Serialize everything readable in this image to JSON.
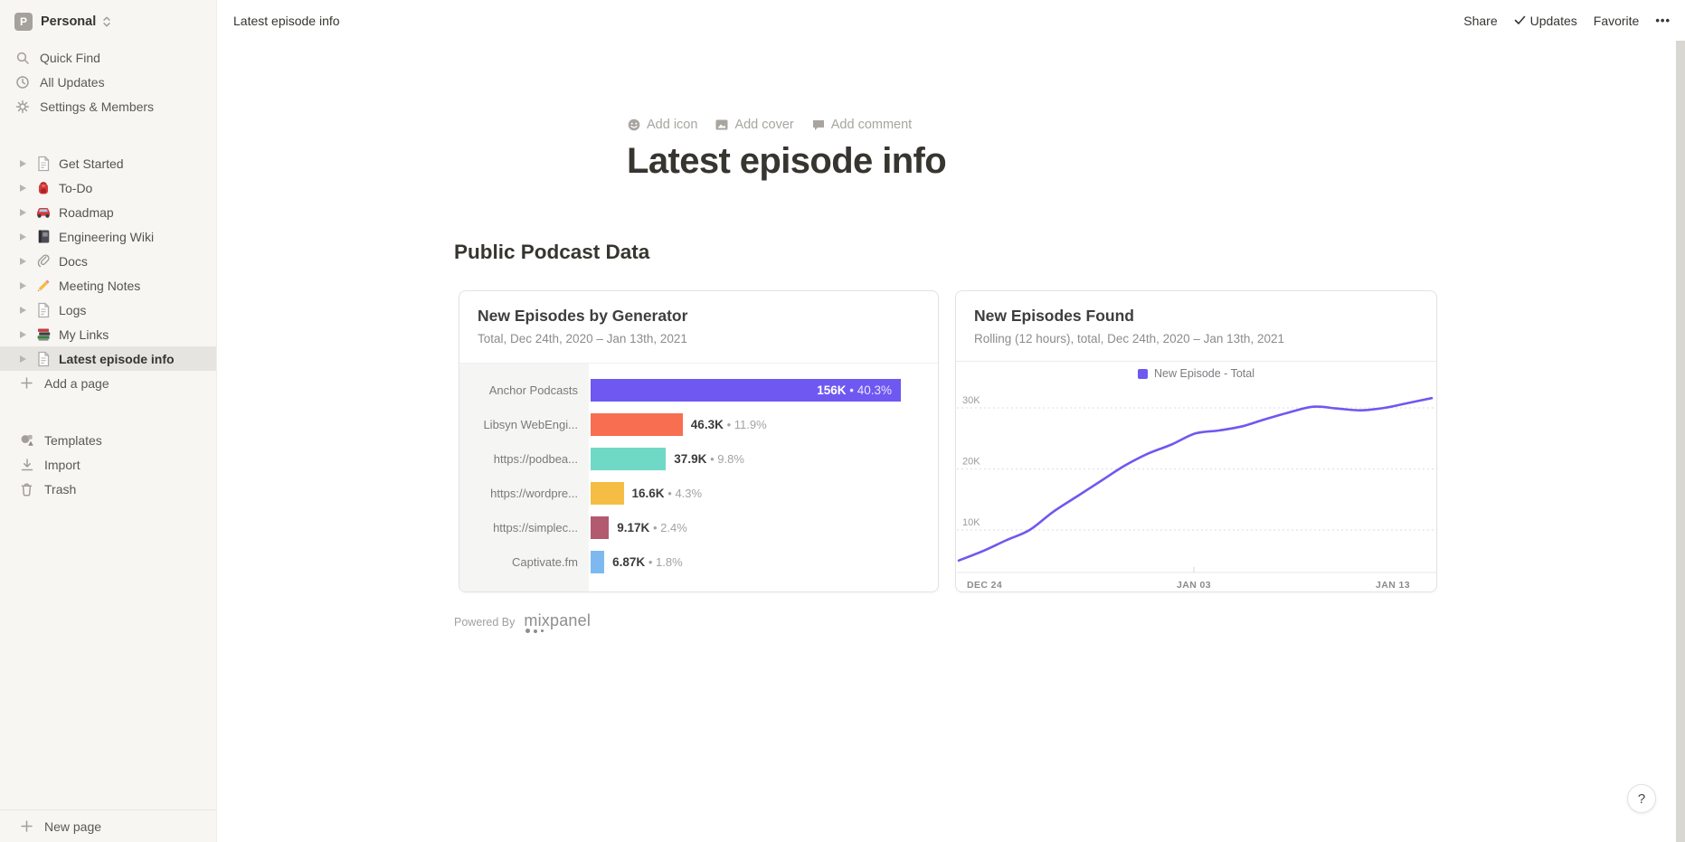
{
  "workspace": {
    "name": "Personal",
    "avatar_letter": "P"
  },
  "sidebar": {
    "top_items": [
      {
        "label": "Quick Find",
        "icon": "search"
      },
      {
        "label": "All Updates",
        "icon": "clock"
      },
      {
        "label": "Settings & Members",
        "icon": "gear"
      }
    ],
    "pages": [
      {
        "label": "Get Started",
        "icon": "page",
        "selected": false
      },
      {
        "label": "To-Do",
        "icon": "backpack",
        "selected": false
      },
      {
        "label": "Roadmap",
        "icon": "car",
        "selected": false
      },
      {
        "label": "Engineering Wiki",
        "icon": "notebook",
        "selected": false
      },
      {
        "label": "Docs",
        "icon": "paperclip",
        "selected": false
      },
      {
        "label": "Meeting Notes",
        "icon": "pencil",
        "selected": false
      },
      {
        "label": "Logs",
        "icon": "page",
        "selected": false
      },
      {
        "label": "My Links",
        "icon": "books",
        "selected": false
      },
      {
        "label": "Latest episode info",
        "icon": "page",
        "selected": true
      }
    ],
    "add_page_label": "Add a page",
    "bottom_items": [
      {
        "label": "Templates",
        "icon": "templates"
      },
      {
        "label": "Import",
        "icon": "import"
      },
      {
        "label": "Trash",
        "icon": "trash"
      }
    ],
    "new_page_label": "New page"
  },
  "topbar": {
    "breadcrumb": "Latest episode info",
    "share_label": "Share",
    "updates_label": "Updates",
    "favorite_label": "Favorite",
    "more_label": "•••"
  },
  "page": {
    "add_icon_label": "Add icon",
    "add_cover_label": "Add cover",
    "add_comment_label": "Add comment",
    "title": "Latest episode info",
    "section_heading": "Public Podcast Data",
    "powered_by_label": "Powered By",
    "mixpanel_wordmark": "mixpanel",
    "help_label": "?"
  },
  "chart_data": [
    {
      "type": "bar",
      "title": "New Episodes by Generator",
      "subtitle": "Total, Dec 24th, 2020 – Jan 13th, 2021",
      "orientation": "horizontal",
      "categories": [
        "Anchor Podcasts",
        "Libsyn WebEngi...",
        "https://podbea...",
        "https://wordpre...",
        "https://simplec...",
        "Captivate.fm"
      ],
      "values": [
        156000,
        46300,
        37900,
        16600,
        9170,
        6870
      ],
      "value_labels": [
        "156K",
        "46.3K",
        "37.9K",
        "16.6K",
        "9.17K",
        "6.87K"
      ],
      "percent_labels": [
        "40.3%",
        "11.9%",
        "9.8%",
        "4.3%",
        "2.4%",
        "1.8%"
      ],
      "bar_colors": [
        "#6e58f1",
        "#f86e51",
        "#6fd9c6",
        "#f6bd45",
        "#b15a70",
        "#7db9ef"
      ],
      "xmax": 156000
    },
    {
      "type": "line",
      "title": "New Episodes Found",
      "subtitle": "Rolling (12 hours), total, Dec 24th, 2020 – Jan 13th, 2021",
      "legend": "New Episode - Total",
      "line_color": "#6e58f1",
      "grid": "dashed-horizontal",
      "x_ticks": [
        "DEC 24",
        "JAN 03",
        "JAN 13"
      ],
      "y_ticks": [
        "10K",
        "20K",
        "30K"
      ],
      "ylim": [
        0,
        34000
      ],
      "values": [
        5000,
        6500,
        8300,
        10000,
        13000,
        15500,
        18000,
        20500,
        22500,
        24000,
        25800,
        26300,
        27000,
        28200,
        29300,
        30200,
        29900,
        29600,
        30000,
        30800,
        31600
      ]
    }
  ]
}
